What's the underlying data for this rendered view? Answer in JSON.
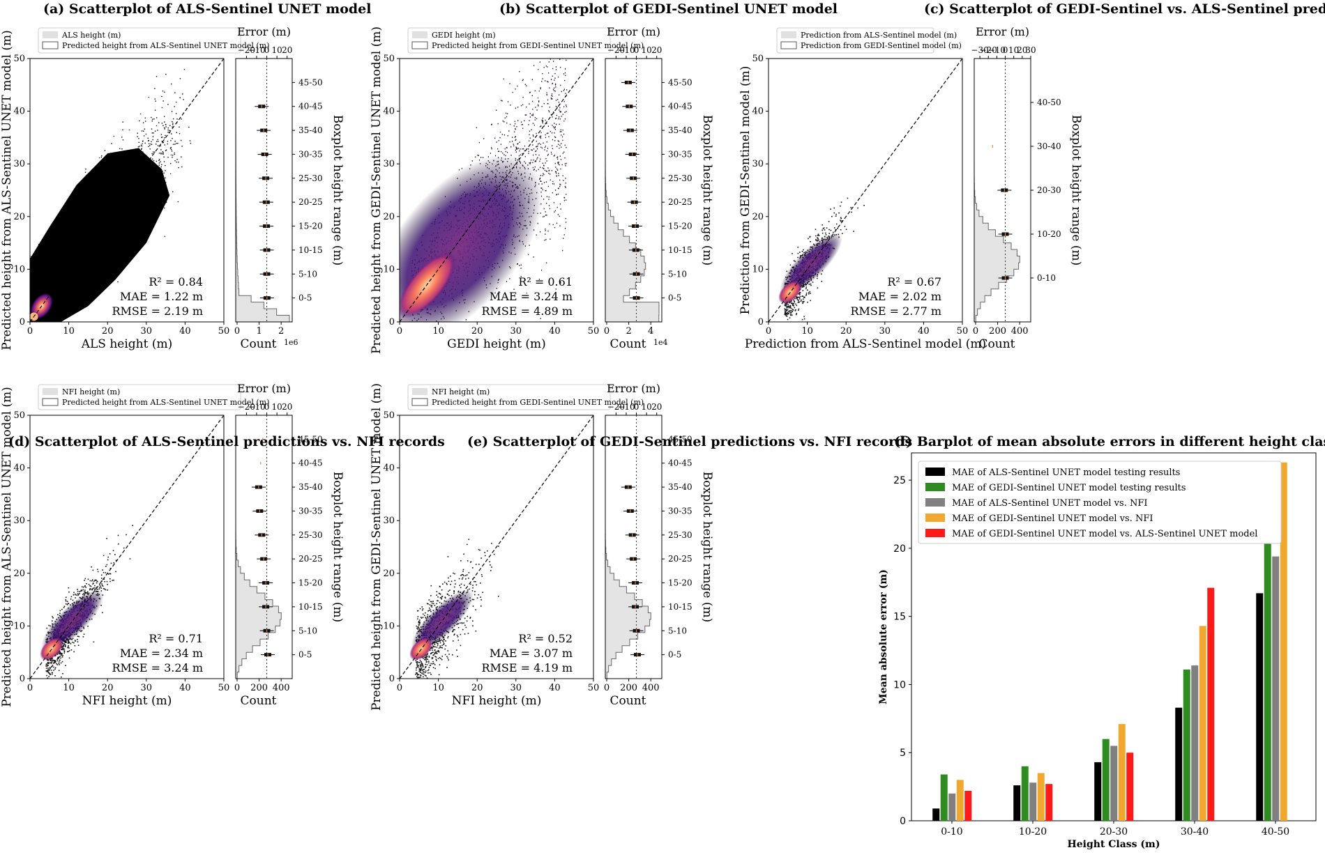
{
  "panels": [
    {
      "id": "a",
      "title": "(a) Scatterplot of ALS-Sentinel UNET model",
      "xlabel": "ALS height (m)",
      "ylabel": "Predicted height from ALS-Sentinel UNET model (m)",
      "legend": [
        "ALS height (m)",
        "Predicted height from ALS-Sentinel UNET model (m)"
      ],
      "stats": [
        "R² = 0.84",
        "MAE = 1.22 m",
        "RMSE = 2.19 m"
      ],
      "err_label": "Error (m)",
      "err_ticks": [
        "−20",
        "−10",
        "0",
        "10",
        "20"
      ],
      "count_label": "Count",
      "count_ticks": [
        "0",
        "1",
        "2"
      ],
      "count_exp": "1e6",
      "box_label": "Boxplot height range (m)",
      "classes": [
        "45-50",
        "40-45",
        "35-40",
        "30-35",
        "25-30",
        "20-25",
        "15-20",
        "10-15",
        "5-10",
        "0-5"
      ]
    },
    {
      "id": "b",
      "title": "(b) Scatterplot of GEDI-Sentinel UNET model",
      "xlabel": "GEDI height (m)",
      "ylabel": "Predicted height from GEDI-Sentinel UNET model (m)",
      "legend": [
        "GEDI height (m)",
        "Predicted height from GEDI-Sentinel UNET model (m)"
      ],
      "stats": [
        "R² = 0.61",
        "MAE = 3.24 m",
        "RMSE = 4.89 m"
      ],
      "err_label": "Error (m)",
      "err_ticks": [
        "−20",
        "−10",
        "0",
        "10",
        "20"
      ],
      "count_label": "Count",
      "count_ticks": [
        "0",
        "2",
        "4"
      ],
      "count_exp": "1e4",
      "box_label": "Boxplot height range (m)",
      "classes": [
        "45-50",
        "40-45",
        "35-40",
        "30-35",
        "25-30",
        "20-25",
        "15-20",
        "10-15",
        "5-10",
        "0-5"
      ]
    },
    {
      "id": "c",
      "title": "(c) Scatterplot of GEDI-Sentinel vs. ALS-Sentinel predictions",
      "xlabel": "Prediction from ALS-Sentinel model (m)",
      "ylabel": "Prediction from GEDI-Sentinel model (m)",
      "legend": [
        "Prediction from ALS-Sentinel model (m)",
        "Prediction from GEDI-Sentinel model (m)"
      ],
      "stats": [
        "R² = 0.67",
        "MAE = 2.02 m",
        "RMSE = 2.77 m"
      ],
      "err_label": "Error (m)",
      "err_ticks": [
        "−30",
        "−20",
        "−10",
        "0",
        "10",
        "20",
        "30"
      ],
      "count_label": "Count",
      "count_ticks": [
        "0",
        "200",
        "400"
      ],
      "count_exp": "",
      "box_label": "Boxplot height range (m)",
      "classes": [
        "40-50",
        "30-40",
        "20-30",
        "10-20",
        "0-10"
      ]
    },
    {
      "id": "d",
      "title": "(d) Scatterplot of ALS-Sentinel predictions vs. NFI records",
      "xlabel": "NFI height (m)",
      "ylabel": "Predicted height from ALS-Sentinel UNET model (m)",
      "legend": [
        "NFI height (m)",
        "Predicted height from ALS-Sentinel UNET model (m)"
      ],
      "stats": [
        "R² = 0.71",
        "MAE = 2.34 m",
        "RMSE = 3.24 m"
      ],
      "err_label": "Error (m)",
      "err_ticks": [
        "−20",
        "−10",
        "0",
        "10",
        "20"
      ],
      "count_label": "Count",
      "count_ticks": [
        "0",
        "200",
        "400"
      ],
      "count_exp": "",
      "box_label": "Boxplot height range (m)",
      "classes": [
        "45-50",
        "40-45",
        "35-40",
        "30-35",
        "25-30",
        "20-25",
        "15-20",
        "10-15",
        "5-10",
        "0-5"
      ]
    },
    {
      "id": "e",
      "title": "(e) Scatterplot of GEDI-Sentinel predictions vs. NFI records",
      "xlabel": "NFI height (m)",
      "ylabel": "Predicted height from GEDI-Sentinel UNET model (m)",
      "legend": [
        "NFI height (m)",
        "Predicted height from GEDI-Sentinel UNET model (m)"
      ],
      "stats": [
        "R² = 0.52",
        "MAE = 3.07 m",
        "RMSE = 4.19 m"
      ],
      "err_label": "Error (m)",
      "err_ticks": [
        "−20",
        "−10",
        "0",
        "10",
        "20"
      ],
      "count_label": "Count",
      "count_ticks": [
        "0",
        "200",
        "400"
      ],
      "count_exp": "",
      "box_label": "Boxplot height range (m)",
      "classes": [
        "45-50",
        "40-45",
        "35-40",
        "30-35",
        "25-30",
        "20-25",
        "15-20",
        "10-15",
        "5-10",
        "0-5"
      ]
    }
  ],
  "scatter_axes": {
    "ab": {
      "xticks": [
        0,
        10,
        20,
        30,
        40,
        50
      ],
      "yticks": [
        0,
        10,
        20,
        30,
        40,
        50
      ]
    },
    "c": {
      "xticks": [
        0,
        10,
        20,
        30,
        40,
        50
      ],
      "yticks": [
        0,
        10,
        20,
        30,
        40,
        50
      ]
    },
    "de": {
      "xticks": [
        0,
        10,
        20,
        30,
        40,
        50
      ],
      "yticks": [
        0,
        10,
        20,
        30,
        40,
        50
      ]
    }
  },
  "chart_data": {
    "type": "bar",
    "title": "(f) Barplot of mean absolute errors in different height class",
    "xlabel": "Height Class (m)",
    "ylabel": "Mean absolute error (m)",
    "ylim": [
      0,
      27
    ],
    "yticks": [
      0,
      5,
      10,
      15,
      20,
      25
    ],
    "categories": [
      "0-10",
      "10-20",
      "20-30",
      "30-40",
      "40-50"
    ],
    "series": [
      {
        "name": "MAE of ALS-Sentinel UNET model testing results",
        "color": "#000000",
        "values": [
          0.9,
          2.6,
          4.3,
          8.3,
          16.7
        ]
      },
      {
        "name": "MAE of GEDI-Sentinel UNET model testing results",
        "color": "#2e8b1f",
        "values": [
          3.4,
          4.0,
          6.0,
          11.1,
          26.4
        ]
      },
      {
        "name": "MAE of ALS-Sentinel UNET model vs. NFI",
        "color": "#808080",
        "values": [
          2.0,
          2.8,
          5.5,
          11.4,
          19.4
        ]
      },
      {
        "name": "MAE of GEDI-Sentinel UNET model vs. NFI",
        "color": "#f0a830",
        "values": [
          3.0,
          3.5,
          7.1,
          14.3,
          26.3
        ]
      },
      {
        "name": "MAE of GEDI-Sentinel UNET model vs. ALS-Sentinel UNET model",
        "color": "#ff1a1a",
        "values": [
          2.2,
          2.7,
          5.0,
          17.1,
          null
        ]
      }
    ]
  }
}
